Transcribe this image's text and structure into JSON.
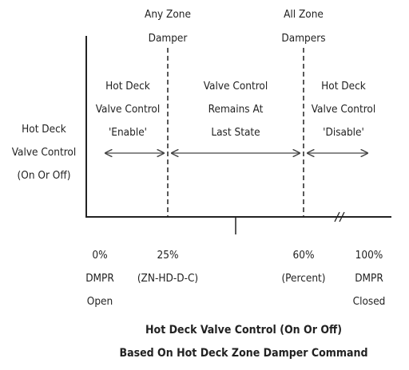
{
  "markers": [
    {
      "lines": [
        "Any Zone",
        "Damper"
      ]
    },
    {
      "lines": [
        "All Zone",
        "Dampers"
      ]
    }
  ],
  "regions": [
    {
      "lines": [
        "Hot Deck",
        "Valve Control",
        "'Enable'"
      ]
    },
    {
      "lines": [
        "Valve Control",
        "Remains At",
        "Last State"
      ]
    },
    {
      "lines": [
        "Hot Deck",
        "Valve Control",
        "'Disable'"
      ]
    }
  ],
  "y_label": [
    "Hot Deck",
    "Valve Control",
    "(On Or Off)"
  ],
  "x_labels": [
    {
      "lines": [
        "0%",
        "DMPR",
        "Open"
      ]
    },
    {
      "lines": [
        "25%",
        "(ZN-HD-D-C)"
      ]
    },
    {
      "lines": [
        "60%",
        "(Percent)"
      ]
    },
    {
      "lines": [
        "100%",
        "DMPR",
        "Closed"
      ]
    }
  ],
  "caption": [
    "Hot Deck Valve Control (On Or Off)",
    "Based On Hot Deck Zone Damper Command"
  ]
}
